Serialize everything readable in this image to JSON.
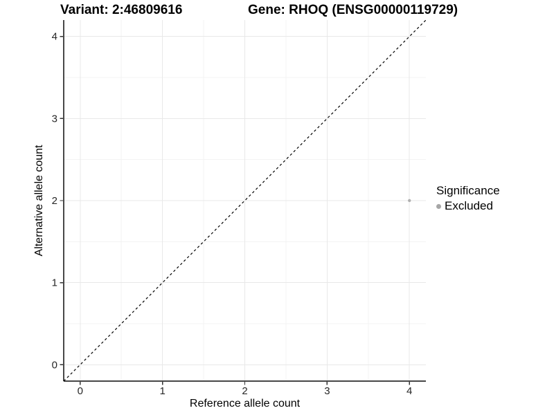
{
  "titles": {
    "variant": "Variant: 2:46809616",
    "gene": "Gene: RHOQ (ENSG00000119729)"
  },
  "chart_data": {
    "type": "scatter",
    "title_variant": "Variant: 2:46809616",
    "title_gene": "Gene: RHOQ (ENSG00000119729)",
    "xlabel": "Reference allele count",
    "ylabel": "Alternative allele count",
    "xlim": [
      -0.2,
      4.2
    ],
    "ylim": [
      -0.2,
      4.2
    ],
    "x_ticks": [
      0,
      1,
      2,
      3,
      4
    ],
    "y_ticks": [
      0,
      1,
      2,
      3,
      4
    ],
    "x_minor_ticks": [
      0.5,
      1.5,
      2.5,
      3.5
    ],
    "y_minor_ticks": [
      0.5,
      1.5,
      2.5,
      3.5
    ],
    "grid": "major+minor",
    "series": [
      {
        "name": "Excluded",
        "color": "#b0b0b0",
        "point_radius": 2.2,
        "points": [
          [
            4,
            2
          ]
        ]
      }
    ],
    "reference_line": {
      "slope": 1,
      "intercept": 0,
      "style": "dashed",
      "color": "#000000"
    },
    "legend": {
      "title": "Significance",
      "position": "right",
      "items": [
        {
          "label": "Excluded",
          "color": "#a6a6a6"
        }
      ]
    }
  },
  "colors": {
    "background": "#ffffff",
    "panel_background": "#ffffff",
    "grid_major": "#e8e8e8",
    "grid_minor": "#f3f3f3",
    "axis_line": "#474747",
    "tick_mark": "#333333",
    "tick_label": "#262626",
    "point": "#b0b0b0",
    "legend_dot": "#a6a6a6"
  }
}
